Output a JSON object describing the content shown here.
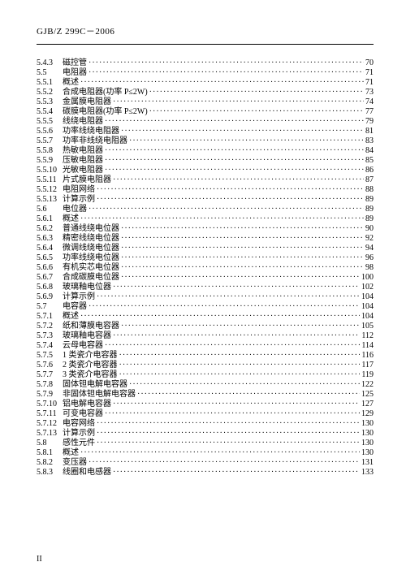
{
  "header": {
    "code": "GJB/Z 299C－2006"
  },
  "toc": {
    "entries": [
      {
        "num": "5.4.3",
        "title": "磁控管",
        "page": "70"
      },
      {
        "num": "5.5",
        "title": "电阻器",
        "page": "71"
      },
      {
        "num": "5.5.1",
        "title": "概述",
        "page": "71"
      },
      {
        "num": "5.5.2",
        "title": "合成电阻器(功率 P≤2W)",
        "page": "73"
      },
      {
        "num": "5.5.3",
        "title": "金属膜电阻器",
        "page": "74"
      },
      {
        "num": "5.5.4",
        "title": "碳膜电阻器(功率 P≤2W)",
        "page": "77"
      },
      {
        "num": "5.5.5",
        "title": "线绕电阻器",
        "page": "79"
      },
      {
        "num": "5.5.6",
        "title": "功率线绕电阻器",
        "page": "81"
      },
      {
        "num": "5.5.7",
        "title": "功率非线绕电阻器",
        "page": "83"
      },
      {
        "num": "5.5.8",
        "title": "热敏电阻器",
        "page": "84"
      },
      {
        "num": "5.5.9",
        "title": "压敏电阻器",
        "page": "85"
      },
      {
        "num": "5.5.10",
        "title": "光敏电阻器",
        "page": "86"
      },
      {
        "num": "5.5.11",
        "title": "片式膜电阻器",
        "page": "87"
      },
      {
        "num": "5.5.12",
        "title": "电阻网络",
        "page": "88"
      },
      {
        "num": "5.5.13",
        "title": "计算示例",
        "page": "89"
      },
      {
        "num": "5.6",
        "title": "电位器",
        "page": "89"
      },
      {
        "num": "5.6.1",
        "title": "概述",
        "page": "89"
      },
      {
        "num": "5.6.2",
        "title": "普通线绕电位器",
        "page": "90"
      },
      {
        "num": "5.6.3",
        "title": "精密线绕电位器",
        "page": "92"
      },
      {
        "num": "5.6.4",
        "title": "微调线绕电位器",
        "page": "94"
      },
      {
        "num": "5.6.5",
        "title": "功率线绕电位器",
        "page": "96"
      },
      {
        "num": "5.6.6",
        "title": "有机实芯电位器",
        "page": "98"
      },
      {
        "num": "5.6.7",
        "title": "合成碳膜电位器",
        "page": "100"
      },
      {
        "num": "5.6.8",
        "title": "玻璃釉电位器",
        "page": "102"
      },
      {
        "num": "5.6.9",
        "title": "计算示例",
        "page": "104"
      },
      {
        "num": "5.7",
        "title": "电容器",
        "page": "104"
      },
      {
        "num": "5.7.1",
        "title": "概述",
        "page": "104"
      },
      {
        "num": "5.7.2",
        "title": "纸和薄膜电容器",
        "page": "105"
      },
      {
        "num": "5.7.3",
        "title": "玻璃釉电容器",
        "page": "112"
      },
      {
        "num": "5.7.4",
        "title": "云母电容器",
        "page": "114"
      },
      {
        "num": "5.7.5",
        "title": "1 类瓷介电容器",
        "page": "116"
      },
      {
        "num": "5.7.6",
        "title": "2 类瓷介电容器",
        "page": "117"
      },
      {
        "num": "5.7.7",
        "title": "3 类瓷介电容器",
        "page": "119"
      },
      {
        "num": "5.7.8",
        "title": "固体钽电解电容器",
        "page": "122"
      },
      {
        "num": "5.7.9",
        "title": "非固体钽电解电容器",
        "page": "125"
      },
      {
        "num": "5.7.10",
        "title": "铝电解电容器",
        "page": "127"
      },
      {
        "num": "5.7.11",
        "title": "可变电容器",
        "page": "129"
      },
      {
        "num": "5.7.12",
        "title": "电容网络",
        "page": "130"
      },
      {
        "num": "5.7.13",
        "title": "计算示例",
        "page": "130"
      },
      {
        "num": "5.8",
        "title": "感性元件",
        "page": "130"
      },
      {
        "num": "5.8.1",
        "title": "概述",
        "page": "130"
      },
      {
        "num": "5.8.2",
        "title": "变压器",
        "page": "131"
      },
      {
        "num": "5.8.3",
        "title": "线圈和电感器",
        "page": "133"
      }
    ]
  },
  "footer": {
    "page_label": "II"
  }
}
